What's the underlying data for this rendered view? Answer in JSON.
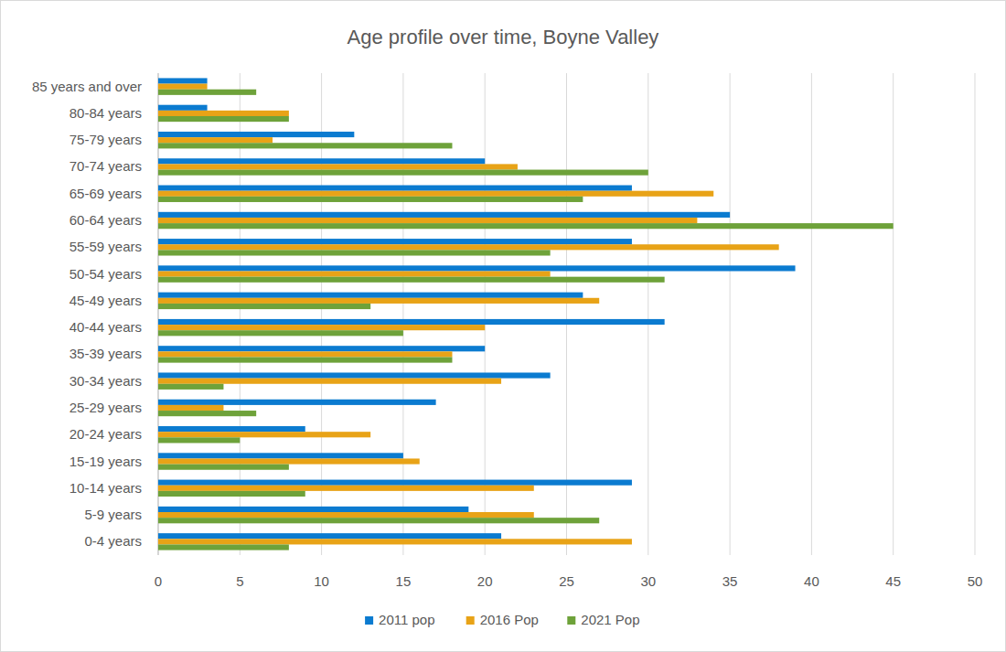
{
  "chart_data": {
    "type": "bar",
    "orientation": "horizontal",
    "title": "Age profile over time, Boyne Valley",
    "categories": [
      "0-4 years",
      "5-9 years",
      "10-14 years",
      "15-19 years",
      "20-24 years",
      "25-29 years",
      "30-34 years",
      "35-39 years",
      "40-44 years",
      "45-49 years",
      "50-54 years",
      "55-59 years",
      "60-64 years",
      "65-69 years",
      "70-74 years",
      "75-79 years",
      "80-84 years",
      "85 years and over"
    ],
    "series": [
      {
        "name": "2011 pop",
        "color": "#0b7bd0",
        "values": [
          21,
          19,
          29,
          15,
          9,
          17,
          24,
          20,
          31,
          26,
          39,
          29,
          35,
          29,
          20,
          12,
          3,
          3
        ]
      },
      {
        "name": "2016 Pop",
        "color": "#e8a317",
        "values": [
          29,
          23,
          23,
          16,
          13,
          4,
          21,
          18,
          20,
          27,
          24,
          38,
          33,
          34,
          22,
          7,
          8,
          3
        ]
      },
      {
        "name": "2021 Pop",
        "color": "#6ea23a",
        "values": [
          8,
          27,
          9,
          8,
          5,
          6,
          4,
          18,
          15,
          13,
          31,
          24,
          45,
          26,
          30,
          18,
          8,
          6
        ]
      }
    ],
    "xlim": [
      0,
      50
    ],
    "xticks": [
      0,
      5,
      10,
      15,
      20,
      25,
      30,
      35,
      40,
      45,
      50
    ],
    "grid": true,
    "legend": "bottom"
  }
}
